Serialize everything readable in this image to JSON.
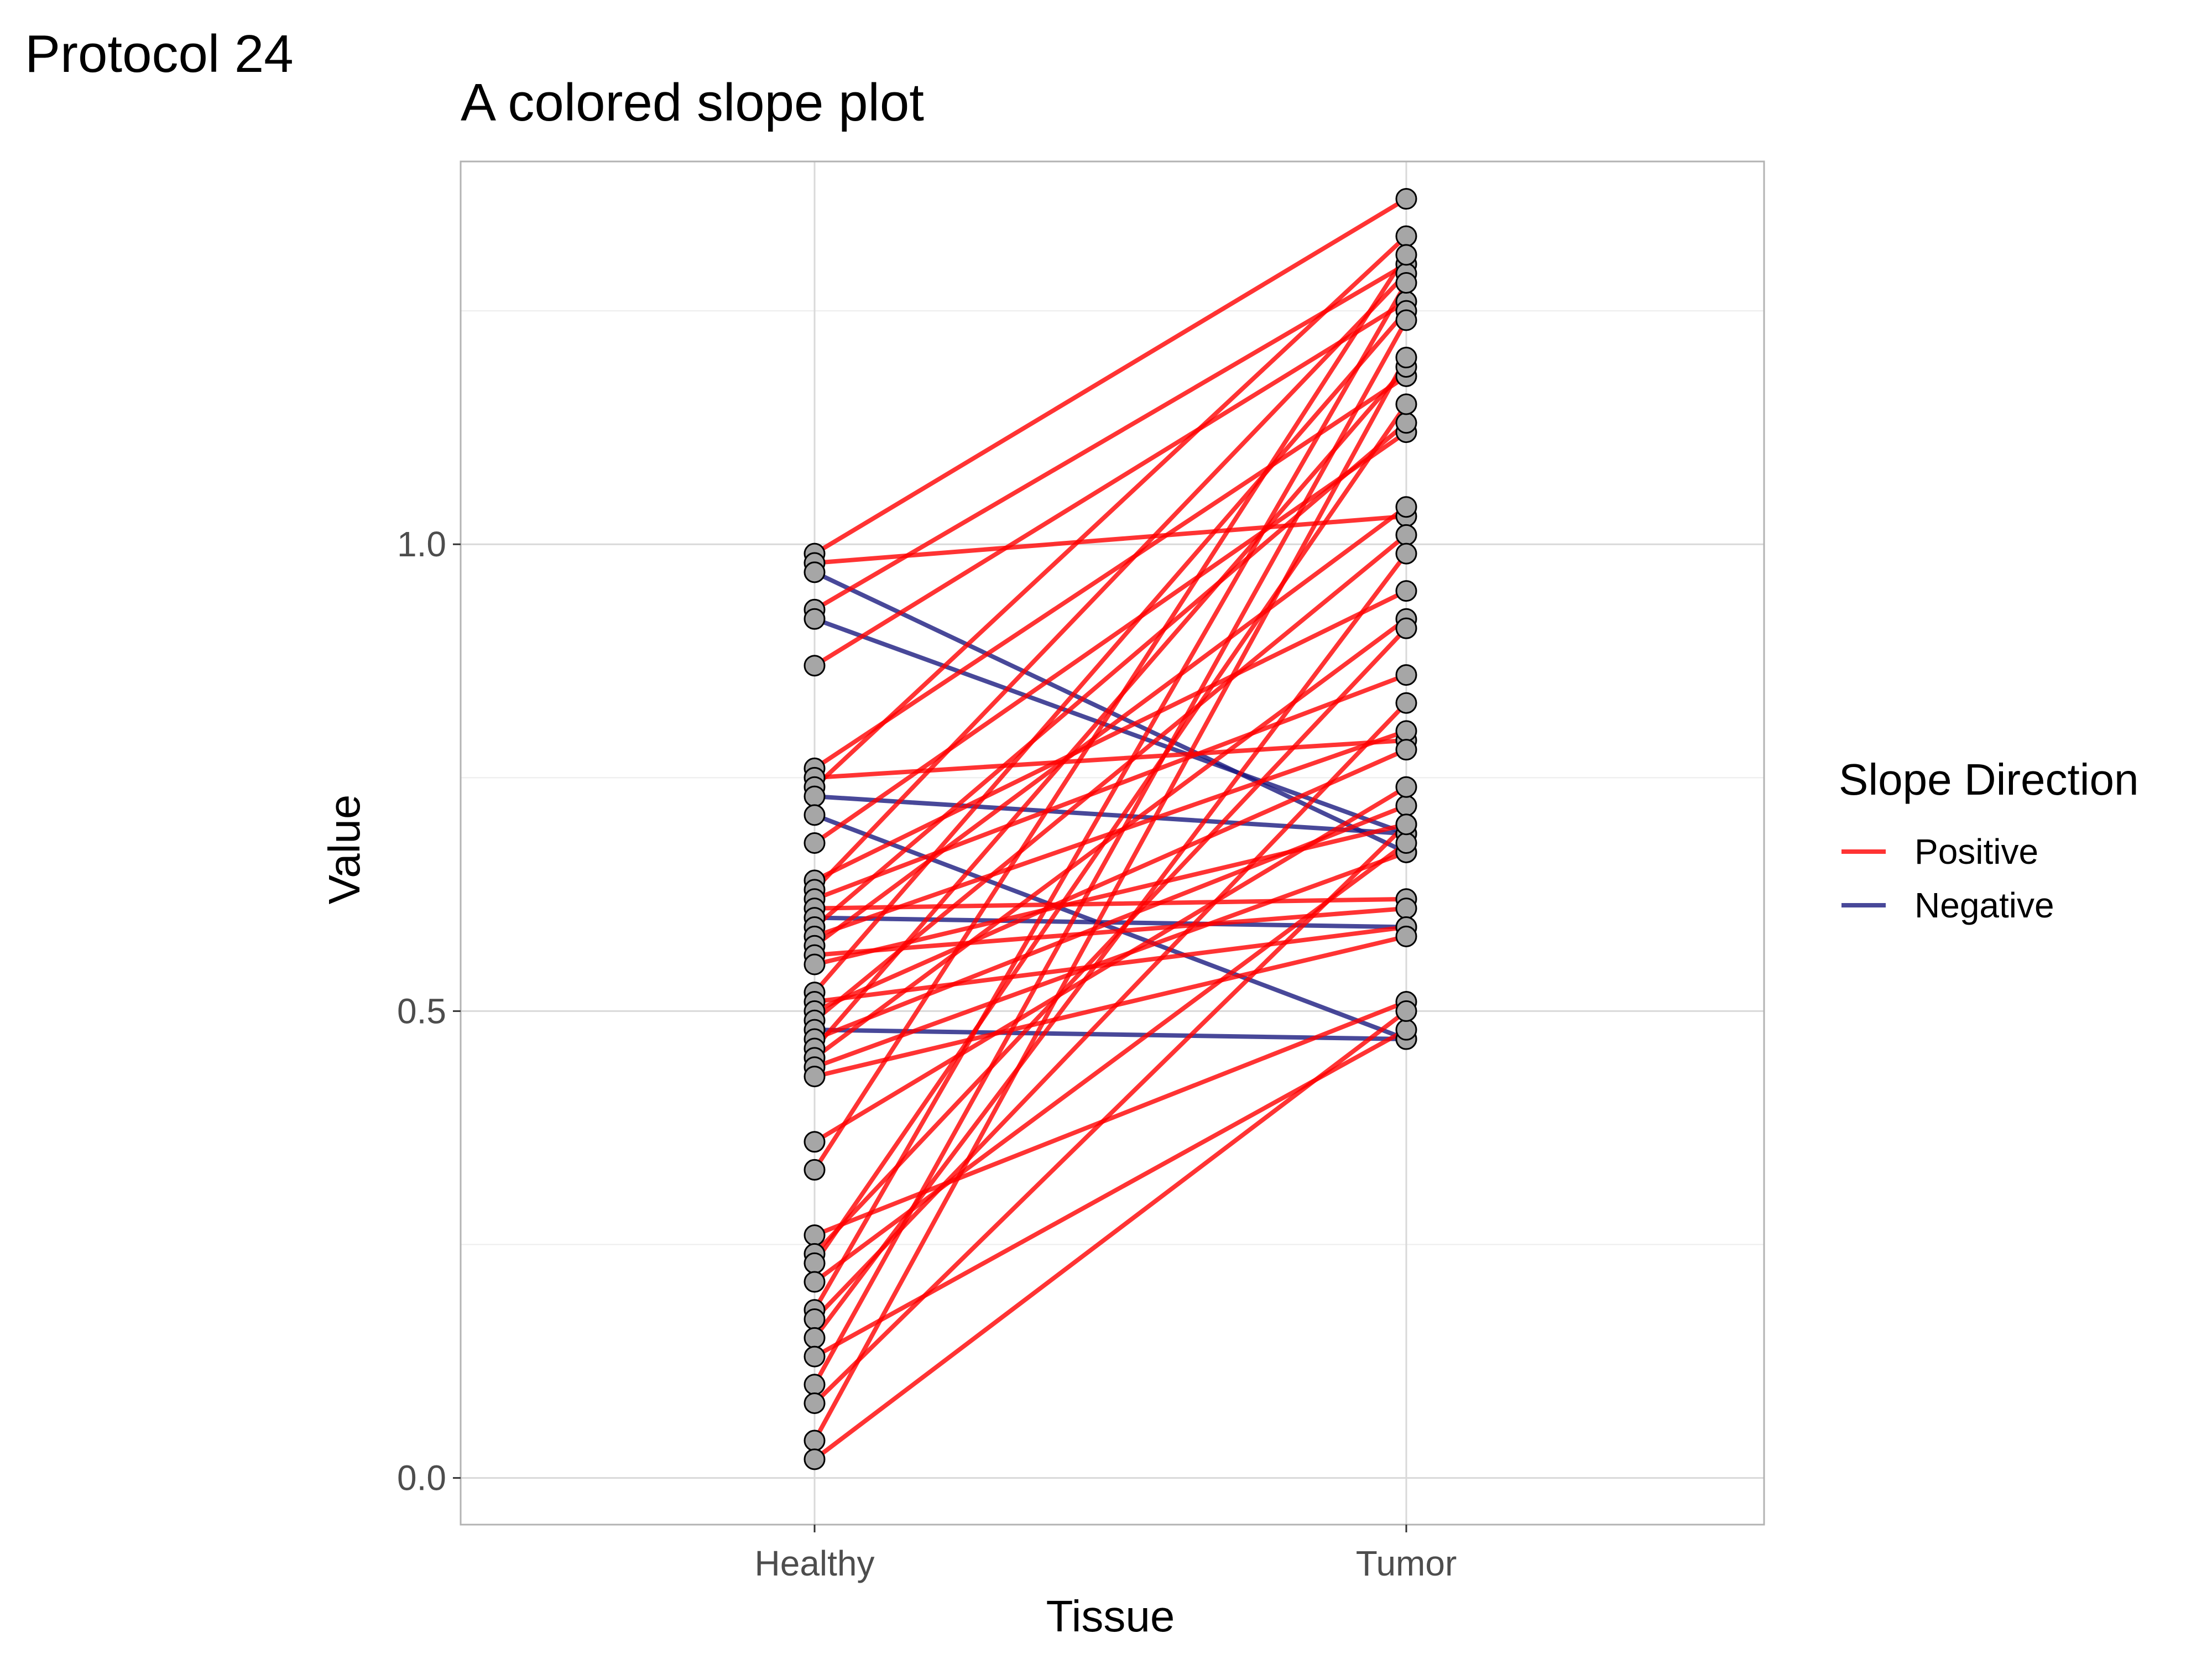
{
  "tag": "Protocol 24",
  "chart_data": {
    "type": "line",
    "title": "A colored slope plot",
    "xlabel": "Tissue",
    "ylabel": "Value",
    "categories": [
      "Healthy",
      "Tumor"
    ],
    "ylim": [
      -0.05,
      1.41
    ],
    "yticks": [
      0.0,
      0.5,
      1.0
    ],
    "ytick_labels": [
      "0.0",
      "0.5",
      "1.0"
    ],
    "grid": true,
    "legend": {
      "title": "Slope Direction",
      "position": "right",
      "items": [
        {
          "label": "Positive",
          "color": "#ff0000"
        },
        {
          "label": "Negative",
          "color": "#1a1a80"
        }
      ]
    },
    "point_fill": "#a6a6a6",
    "point_stroke": "#000000",
    "colors": {
      "Positive": "#ff0000",
      "Negative": "#1a1a80"
    },
    "pairs": [
      {
        "healthy": 0.99,
        "tumor": 1.37,
        "direction": "Positive"
      },
      {
        "healthy": 0.98,
        "tumor": 1.03,
        "direction": "Positive"
      },
      {
        "healthy": 0.97,
        "tumor": 0.67,
        "direction": "Negative"
      },
      {
        "healthy": 0.93,
        "tumor": 1.3,
        "direction": "Positive"
      },
      {
        "healthy": 0.92,
        "tumor": 0.69,
        "direction": "Negative"
      },
      {
        "healthy": 0.87,
        "tumor": 1.26,
        "direction": "Positive"
      },
      {
        "healthy": 0.76,
        "tumor": 1.18,
        "direction": "Positive"
      },
      {
        "healthy": 0.75,
        "tumor": 0.79,
        "direction": "Positive"
      },
      {
        "healthy": 0.74,
        "tumor": 1.33,
        "direction": "Positive"
      },
      {
        "healthy": 0.73,
        "tumor": 0.69,
        "direction": "Negative"
      },
      {
        "healthy": 0.71,
        "tumor": 0.47,
        "direction": "Negative"
      },
      {
        "healthy": 0.68,
        "tumor": 1.12,
        "direction": "Positive"
      },
      {
        "healthy": 0.64,
        "tumor": 0.95,
        "direction": "Positive"
      },
      {
        "healthy": 0.63,
        "tumor": 1.29,
        "direction": "Positive"
      },
      {
        "healthy": 0.62,
        "tumor": 0.86,
        "direction": "Positive"
      },
      {
        "healthy": 0.61,
        "tumor": 0.62,
        "direction": "Positive"
      },
      {
        "healthy": 0.6,
        "tumor": 0.59,
        "direction": "Negative"
      },
      {
        "healthy": 0.59,
        "tumor": 1.13,
        "direction": "Positive"
      },
      {
        "healthy": 0.58,
        "tumor": 0.8,
        "direction": "Positive"
      },
      {
        "healthy": 0.57,
        "tumor": 1.04,
        "direction": "Positive"
      },
      {
        "healthy": 0.56,
        "tumor": 0.61,
        "direction": "Positive"
      },
      {
        "healthy": 0.55,
        "tumor": 0.7,
        "direction": "Positive"
      },
      {
        "healthy": 0.52,
        "tumor": 1.25,
        "direction": "Positive"
      },
      {
        "healthy": 0.51,
        "tumor": 0.59,
        "direction": "Positive"
      },
      {
        "healthy": 0.5,
        "tumor": 0.78,
        "direction": "Positive"
      },
      {
        "healthy": 0.49,
        "tumor": 1.01,
        "direction": "Positive"
      },
      {
        "healthy": 0.48,
        "tumor": 0.47,
        "direction": "Negative"
      },
      {
        "healthy": 0.47,
        "tumor": 0.72,
        "direction": "Positive"
      },
      {
        "healthy": 0.46,
        "tumor": 1.19,
        "direction": "Positive"
      },
      {
        "healthy": 0.45,
        "tumor": 0.92,
        "direction": "Positive"
      },
      {
        "healthy": 0.44,
        "tumor": 0.67,
        "direction": "Positive"
      },
      {
        "healthy": 0.43,
        "tumor": 0.58,
        "direction": "Positive"
      },
      {
        "healthy": 0.36,
        "tumor": 0.74,
        "direction": "Positive"
      },
      {
        "healthy": 0.33,
        "tumor": 1.31,
        "direction": "Positive"
      },
      {
        "healthy": 0.26,
        "tumor": 0.51,
        "direction": "Positive"
      },
      {
        "healthy": 0.24,
        "tumor": 0.91,
        "direction": "Positive"
      },
      {
        "healthy": 0.23,
        "tumor": 1.15,
        "direction": "Positive"
      },
      {
        "healthy": 0.21,
        "tumor": 0.68,
        "direction": "Positive"
      },
      {
        "healthy": 0.18,
        "tumor": 1.28,
        "direction": "Positive"
      },
      {
        "healthy": 0.17,
        "tumor": 0.83,
        "direction": "Positive"
      },
      {
        "healthy": 0.15,
        "tumor": 0.99,
        "direction": "Positive"
      },
      {
        "healthy": 0.13,
        "tumor": 0.48,
        "direction": "Positive"
      },
      {
        "healthy": 0.1,
        "tumor": 1.24,
        "direction": "Positive"
      },
      {
        "healthy": 0.08,
        "tumor": 0.7,
        "direction": "Positive"
      },
      {
        "healthy": 0.04,
        "tumor": 1.2,
        "direction": "Positive"
      },
      {
        "healthy": 0.02,
        "tumor": 0.5,
        "direction": "Positive"
      }
    ]
  }
}
